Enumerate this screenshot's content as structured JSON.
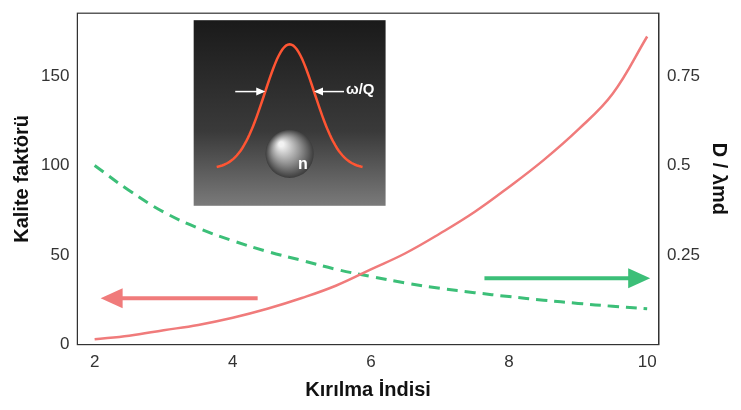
{
  "chart_data": {
    "type": "line",
    "x_label": "Kırılma İndisi",
    "y_label": "Kalite faktörü",
    "y2_label": "D / λmd",
    "annotations": [
      "ω/Q",
      "n"
    ],
    "x": [
      2,
      2.5,
      3,
      3.5,
      4,
      4.5,
      5,
      5.5,
      6,
      6.5,
      7,
      7.5,
      8,
      8.5,
      9,
      9.5,
      10
    ],
    "series": [
      {
        "color": "#f07b7b",
        "line_style": "solid",
        "values": [
          3,
          5,
          8,
          11,
          15,
          20,
          26,
          33,
          42,
          51,
          62,
          74,
          88,
          103,
          120,
          140,
          172
        ]
      },
      {
        "color": "#3cbf78",
        "line_style": "dashed",
        "axis": "y2",
        "values": [
          0.5,
          0.43,
          0.37,
          0.325,
          0.29,
          0.26,
          0.235,
          0.21,
          0.19,
          0.172,
          0.157,
          0.145,
          0.134,
          0.124,
          0.115,
          0.107,
          0.1
        ]
      }
    ],
    "xlim": [
      1.75,
      10.17
    ],
    "xticks": [
      2,
      4,
      6,
      8,
      10
    ],
    "ylim": [
      0,
      185
    ],
    "yticks": [
      0,
      50,
      100,
      150
    ],
    "y2lim": [
      0,
      0.925
    ],
    "y2ticks": [
      0.25,
      0.5,
      0.75
    ],
    "grid": false
  }
}
